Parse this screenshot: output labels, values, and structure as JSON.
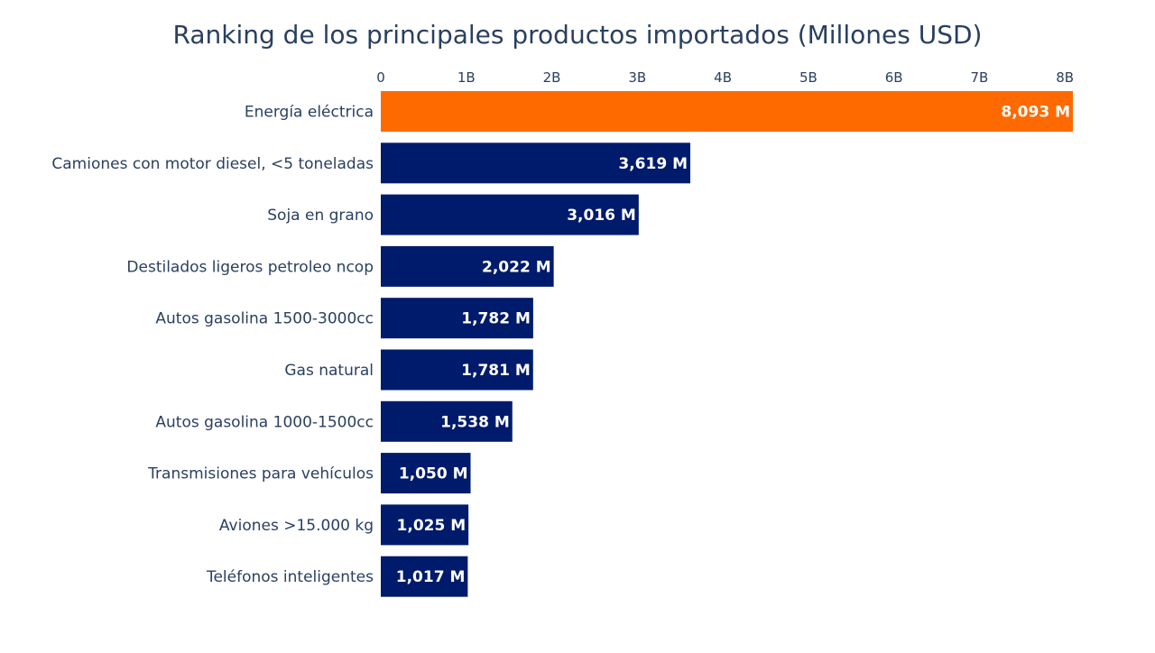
{
  "chart_data": {
    "type": "bar",
    "orientation": "horizontal",
    "title": "Ranking de los principales productos importados (Millones USD)",
    "xlabel": "",
    "ylabel": "",
    "xlim": [
      0,
      8093
    ],
    "x_ticks": [
      {
        "value": 0,
        "label": "0"
      },
      {
        "value": 1000,
        "label": "1B"
      },
      {
        "value": 2000,
        "label": "2B"
      },
      {
        "value": 3000,
        "label": "3B"
      },
      {
        "value": 4000,
        "label": "4B"
      },
      {
        "value": 5000,
        "label": "5B"
      },
      {
        "value": 6000,
        "label": "6B"
      },
      {
        "value": 7000,
        "label": "7B"
      },
      {
        "value": 8000,
        "label": "8B"
      }
    ],
    "x_axis_position": "top",
    "grid": false,
    "legend": false,
    "categories": [
      "Energía eléctrica",
      "Camiones con motor diesel, <5 toneladas",
      "Soja en grano",
      "Destilados ligeros petroleo ncop",
      "Autos gasolina 1500-3000cc",
      "Gas natural",
      "Autos gasolina 1000-1500cc",
      "Transmisiones para vehículos",
      "Aviones >15.000 kg",
      "Teléfonos inteligentes"
    ],
    "values": [
      8093,
      3619,
      3016,
      2022,
      1782,
      1781,
      1538,
      1050,
      1025,
      1017
    ],
    "data_labels": [
      "8,093 M",
      "3,619 M",
      "3,016 M",
      "2,022 M",
      "1,782 M",
      "1,781 M",
      "1,538 M",
      "1,050 M",
      "1,025 M",
      "1,017 M"
    ],
    "colors": {
      "highlight": "#ff6a00",
      "default": "#001b6b",
      "text": "#2a3f5f",
      "label_text": "#ffffff"
    },
    "highlight_index": 0
  }
}
